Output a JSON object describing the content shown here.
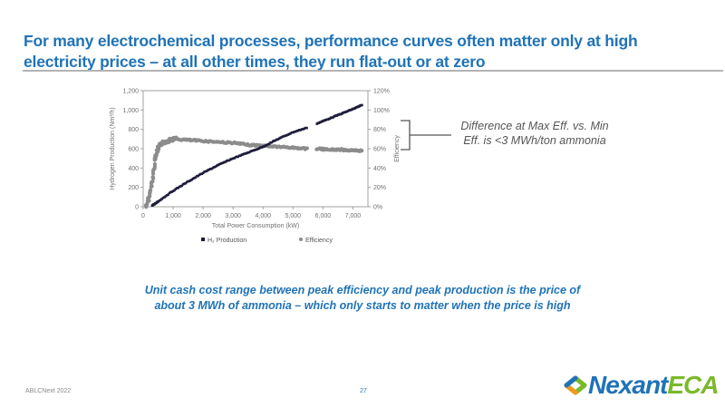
{
  "slide": {
    "title": "For many electrochemical processes, performance curves often matter only at high electricity prices – at all other times, they run flat-out or at zero",
    "annotation": "Difference at Max Eff. vs. Min Eff. is <3 MWh/ton ammonia",
    "callout": "Unit cash cost range between peak efficiency and peak production is the price of about 3 MWh of ammonia – which only starts to matter when the price is high",
    "footer_left": "ABLCNext 2022",
    "page_number": "27",
    "logo": {
      "part1": "Nexant",
      "part2": "ECA"
    },
    "colors": {
      "title_blue": "#1f73b7",
      "logo_green": "#7ab929",
      "h2_series": "#1c1c3a",
      "efficiency_series": "#8c8c8c"
    }
  },
  "chart_data": {
    "type": "scatter",
    "title": "",
    "xlabel": "Total Power Consumption (kW)",
    "ylabel": "Hydrogen Production (Nm³/h)",
    "y2label": "Efficiency",
    "xlim": [
      0,
      7500
    ],
    "ylim": [
      0,
      1200
    ],
    "y2lim": [
      0,
      120
    ],
    "x_ticks": [
      "0",
      "1,000",
      "2,000",
      "3,000",
      "4,000",
      "5,000",
      "6,000",
      "7,000"
    ],
    "x_tick_values": [
      0,
      1000,
      2000,
      3000,
      4000,
      5000,
      6000,
      7000
    ],
    "y_ticks": [
      "0",
      "200",
      "400",
      "600",
      "800",
      "1,000",
      "1,200"
    ],
    "y_tick_values": [
      0,
      200,
      400,
      600,
      800,
      1000,
      1200
    ],
    "y2_ticks": [
      "0%",
      "20%",
      "40%",
      "60%",
      "80%",
      "100%",
      "120%"
    ],
    "y2_tick_values": [
      0,
      20,
      40,
      60,
      80,
      100,
      120
    ],
    "grid": false,
    "legend_position": "bottom",
    "legend": [
      {
        "label": "H₂ Production",
        "marker": "square",
        "color": "#1c1c3a"
      },
      {
        "label": "Efficiency",
        "marker": "circle",
        "color": "#8c8c8c"
      }
    ],
    "series": [
      {
        "name": "H₂ Production",
        "axis": "left",
        "x": [
          300,
          500,
          1000,
          1500,
          2000,
          2500,
          3000,
          3500,
          4000,
          4500,
          5000,
          5500,
          5800,
          6200,
          6600,
          7000,
          7300
        ],
        "y": [
          10,
          55,
          165,
          260,
          350,
          430,
          500,
          560,
          620,
          700,
          770,
          820,
          860,
          910,
          960,
          1010,
          1050
        ]
      },
      {
        "name": "Efficiency",
        "axis": "right",
        "x": [
          100,
          200,
          300,
          400,
          500,
          600,
          800,
          1000,
          1500,
          2000,
          2500,
          3000,
          3500,
          4000,
          4500,
          5000,
          5500,
          5800,
          6200,
          6600,
          7000,
          7300
        ],
        "y": [
          0,
          10,
          25,
          50,
          60,
          65,
          68,
          70,
          69,
          68,
          67,
          66,
          64,
          63,
          62,
          61,
          60,
          60,
          59,
          59,
          58,
          58
        ]
      }
    ]
  }
}
